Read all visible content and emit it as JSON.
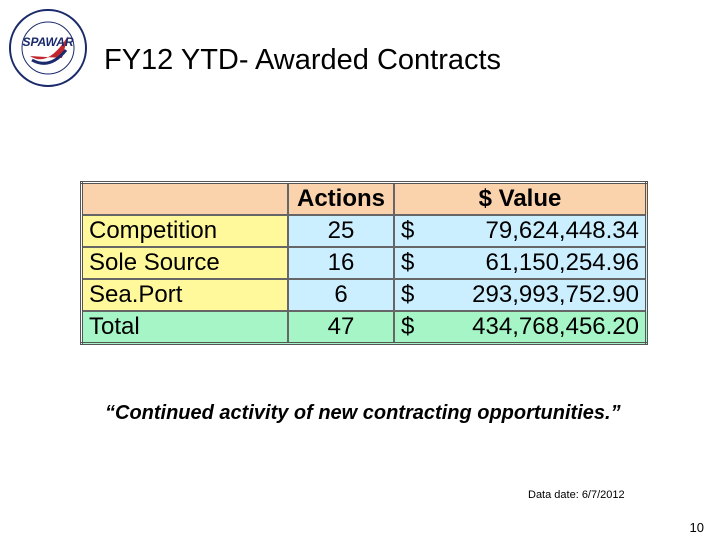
{
  "logo": {
    "text": "SPAWAR"
  },
  "header": {
    "title": "FY12 YTD- Awarded Contracts"
  },
  "table": {
    "columns": [
      "Actions",
      "$ Value"
    ],
    "rows": [
      [
        "Competition",
        25,
        "$",
        "79,624,448.34"
      ],
      [
        "Sole Source",
        16,
        "$",
        "61,150,254.96"
      ],
      [
        "Sea.Port",
        6,
        "$",
        "293,993,752.90"
      ],
      [
        "Total",
        47,
        "$",
        "434,768,456.20"
      ]
    ]
  },
  "quote": "“Continued activity of new contracting opportunities.”",
  "footer": {
    "data_date": "Data date: 6/7/2012",
    "page_number": "10"
  }
}
